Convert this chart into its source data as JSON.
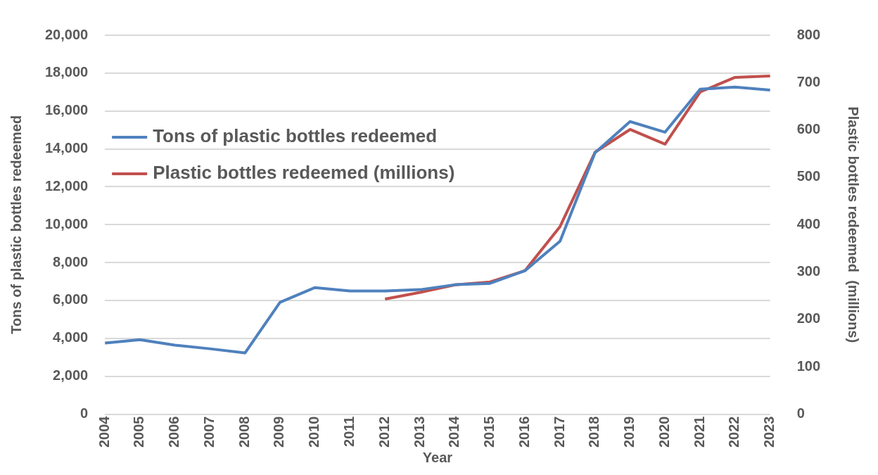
{
  "chart_data": {
    "type": "line",
    "xlabel": "Year",
    "ylabel": "Tons of plastic bottles redeemed",
    "y2label": "Plastic bottles redeemed  (millions)",
    "categories": [
      "2004",
      "2005",
      "2006",
      "2007",
      "2008",
      "2009",
      "2010",
      "2011",
      "2012",
      "2013",
      "2014",
      "2015",
      "2016",
      "2017",
      "2018",
      "2019",
      "2020",
      "2021",
      "2022",
      "2023"
    ],
    "series": [
      {
        "name": "Tons of plastic bottles redeemed",
        "color": "#4f81bd",
        "values": [
          3750,
          3930,
          3640,
          3450,
          3230,
          5900,
          6680,
          6500,
          6500,
          6570,
          6830,
          6900,
          7570,
          9130,
          13800,
          15440,
          14880,
          17150,
          17260,
          17100
        ]
      },
      {
        "name": "Plastic bottles redeemed (millions)",
        "color": "#c0504d",
        "axis": "y2",
        "values": [
          null,
          null,
          null,
          null,
          null,
          null,
          null,
          null,
          243,
          257,
          273,
          279,
          303,
          396,
          553,
          601,
          570,
          680,
          711,
          714
        ]
      }
    ],
    "ylim": [
      0,
      20000
    ],
    "yticks": [
      0,
      {
        "value": 2000,
        "label": "2,000"
      },
      {
        "value": 4000,
        "label": "4,000"
      },
      {
        "value": 6000,
        "label": "6,000"
      },
      {
        "value": 8000,
        "label": "8,000"
      },
      {
        "value": 10000,
        "label": "10,000"
      },
      {
        "value": 12000,
        "label": "12,000"
      },
      {
        "value": 14000,
        "label": "14,000"
      },
      {
        "value": 16000,
        "label": "16,000"
      },
      {
        "value": 18000,
        "label": "18,000"
      },
      {
        "value": 20000,
        "label": "20,000"
      }
    ],
    "y2lim": [
      0,
      800
    ],
    "y2ticks": [
      0,
      100,
      200,
      300,
      400,
      500,
      600,
      700,
      800
    ],
    "grid": "y",
    "legend": "top left",
    "marker": "none",
    "line_style": "solid"
  }
}
